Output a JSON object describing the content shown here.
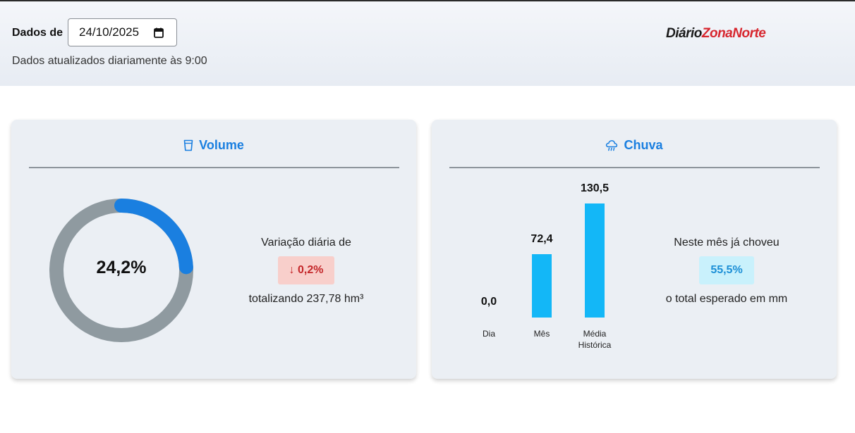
{
  "header": {
    "date_label": "Dados de",
    "date_value": "24/10/2025",
    "updated_text": "Dados atualizados diariamente às 9:00",
    "logo_part1": "Diário",
    "logo_part2": "ZonaNorte"
  },
  "volume": {
    "title": "Volume",
    "icon": "cup-icon",
    "percent_label": "24,2%",
    "percent_value": 24.2,
    "variation_text": "Variação diária de",
    "variation_badge": "↓ 0,2%",
    "total_text": "totalizando 237,78 hm³",
    "colors": {
      "fill": "#1a7fe0",
      "track": "#8f9aa0"
    }
  },
  "chuva": {
    "title": "Chuva",
    "icon": "cloud-rain-icon",
    "month_text": "Neste mês já choveu",
    "month_badge": "55,5%",
    "expected_text": "o total esperado em mm",
    "chart_data": {
      "type": "bar",
      "categories": [
        "Dia",
        "Mês",
        "Média Histórica"
      ],
      "values": [
        0.0,
        72.4,
        130.5
      ],
      "value_labels": [
        "0,0",
        "72,4",
        "130,5"
      ],
      "color": "#13b7f7"
    }
  }
}
